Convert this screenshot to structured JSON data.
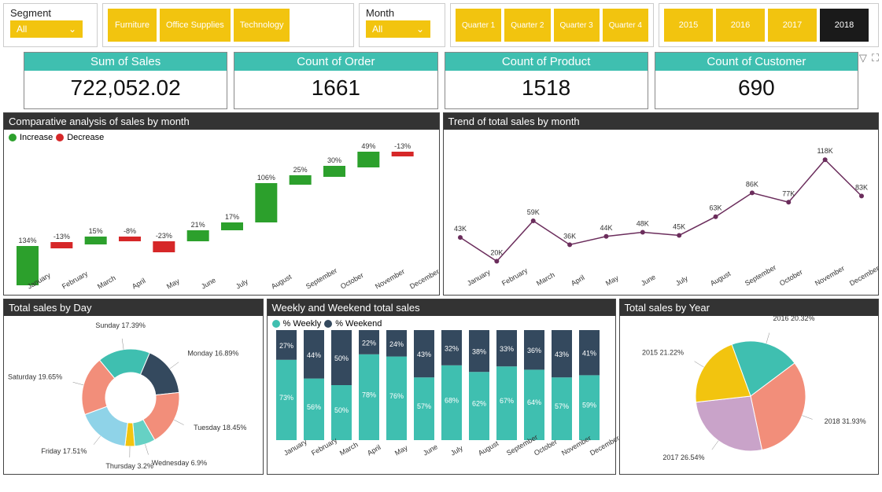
{
  "colors": {
    "accent_yellow": "#f2c40f",
    "teal": "#3fbfb0",
    "dark": "#333333",
    "increase": "#2ca02c",
    "decrease": "#d62728",
    "line": "#6b2d5c",
    "stack_top": "#34495e"
  },
  "segment_slicer": {
    "label": "Segment",
    "value": "All"
  },
  "category_pills": [
    "Furniture",
    "Office Supplies",
    "Technology"
  ],
  "month_slicer": {
    "label": "Month",
    "value": "All"
  },
  "quarter_pills": [
    "Quarter 1",
    "Quarter 2",
    "Quarter 3",
    "Quarter 4"
  ],
  "year_pills": [
    {
      "label": "2015",
      "active": false
    },
    {
      "label": "2016",
      "active": false
    },
    {
      "label": "2017",
      "active": false
    },
    {
      "label": "2018",
      "active": true
    }
  ],
  "kpis": [
    {
      "title": "Sum of Sales",
      "value": "722,052.02"
    },
    {
      "title": "Count of Order",
      "value": "1661"
    },
    {
      "title": "Count of Product",
      "value": "1518"
    },
    {
      "title": "Count of Customer",
      "value": "690"
    }
  ],
  "months": [
    "January",
    "February",
    "March",
    "April",
    "May",
    "June",
    "July",
    "August",
    "September",
    "October",
    "November",
    "December"
  ],
  "waterfall": {
    "title": "Comparative analysis of sales by month",
    "legend_increase": "Increase",
    "legend_decrease": "Decrease",
    "bars": [
      {
        "label": "134%",
        "dir": "up",
        "y": 120,
        "h": 50
      },
      {
        "label": "-13%",
        "dir": "down",
        "y": 115,
        "h": 8
      },
      {
        "label": "15%",
        "dir": "up",
        "y": 108,
        "h": 10
      },
      {
        "label": "-8%",
        "dir": "down",
        "y": 108,
        "h": 6
      },
      {
        "label": "-23%",
        "dir": "down",
        "y": 114,
        "h": 14
      },
      {
        "label": "21%",
        "dir": "up",
        "y": 100,
        "h": 14
      },
      {
        "label": "17%",
        "dir": "up",
        "y": 90,
        "h": 10
      },
      {
        "label": "106%",
        "dir": "up",
        "y": 40,
        "h": 50
      },
      {
        "label": "25%",
        "dir": "up",
        "y": 30,
        "h": 12
      },
      {
        "label": "30%",
        "dir": "up",
        "y": 18,
        "h": 14
      },
      {
        "label": "49%",
        "dir": "up",
        "y": 0,
        "h": 20
      },
      {
        "label": "-13%",
        "dir": "down",
        "y": 0,
        "h": 6
      }
    ]
  },
  "trend": {
    "title": "Trend of total sales by month",
    "values_k": [
      43,
      20,
      59,
      36,
      44,
      48,
      45,
      63,
      86,
      77,
      118,
      83
    ],
    "ylim": [
      15,
      125
    ]
  },
  "donut": {
    "title": "Total sales by Day",
    "slices": [
      {
        "label": "Sunday 17.39%",
        "pct": 17.39,
        "color": "#3fbfb0"
      },
      {
        "label": "Monday 16.89%",
        "pct": 16.89,
        "color": "#34495e"
      },
      {
        "label": "Tuesday 18.45%",
        "pct": 18.45,
        "color": "#f28e7a"
      },
      {
        "label": "Wednesday 6.9%",
        "pct": 6.9,
        "color": "#66d1c4"
      },
      {
        "label": "Thursday 3.2%",
        "pct": 3.2,
        "color": "#f2c40f"
      },
      {
        "label": "Friday 17.51%",
        "pct": 17.51,
        "color": "#8fd3e8"
      },
      {
        "label": "Saturday 19.65%",
        "pct": 19.65,
        "color": "#f28e7a"
      }
    ]
  },
  "stacked": {
    "title": "Weekly and Weekend total sales",
    "legend_a": "% Weekly",
    "legend_b": "% Weekend",
    "bars": [
      {
        "a": 73,
        "b": 27
      },
      {
        "a": 56,
        "b": 44
      },
      {
        "a": 50,
        "b": 50
      },
      {
        "a": 78,
        "b": 22
      },
      {
        "a": 76,
        "b": 24
      },
      {
        "a": 57,
        "b": 43
      },
      {
        "a": 68,
        "b": 32
      },
      {
        "a": 62,
        "b": 38
      },
      {
        "a": 67,
        "b": 33
      },
      {
        "a": 64,
        "b": 36
      },
      {
        "a": 57,
        "b": 43
      },
      {
        "a": 59,
        "b": 41
      }
    ]
  },
  "pie": {
    "title": "Total sales by Year",
    "slices": [
      {
        "label": "2016 20.32%",
        "pct": 20.32,
        "color": "#3fbfb0"
      },
      {
        "label": "2018 31.93%",
        "pct": 31.93,
        "color": "#f28e7a"
      },
      {
        "label": "2017 26.54%",
        "pct": 26.54,
        "color": "#c9a3c9"
      },
      {
        "label": "2015 21.22%",
        "pct": 21.22,
        "color": "#f2c40f"
      }
    ]
  }
}
